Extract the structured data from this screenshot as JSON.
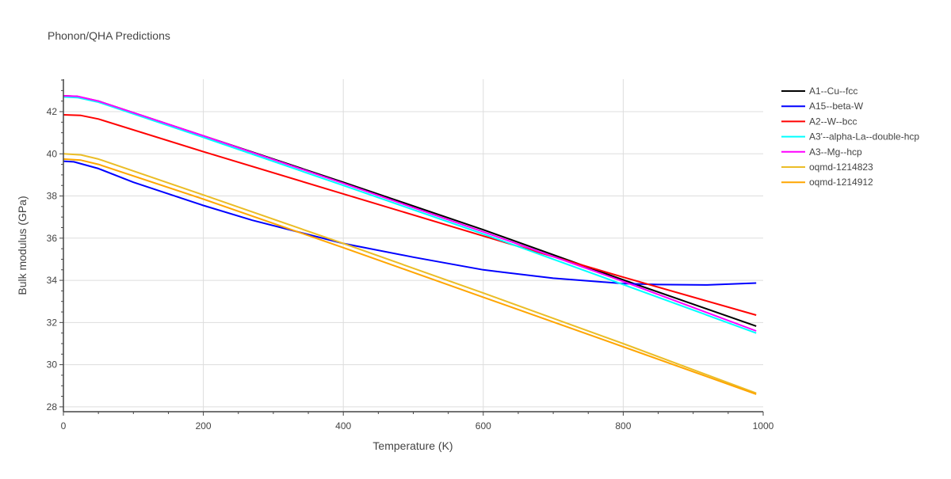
{
  "chart_data": {
    "type": "line",
    "title": "Phonon/QHA Predictions",
    "xlabel": "Temperature (K)",
    "ylabel": "Bulk modulus (GPa)",
    "xlim": [
      0,
      1000
    ],
    "ylim": [
      27.77,
      43.54
    ],
    "xticks": [
      0,
      200,
      400,
      600,
      800,
      1000
    ],
    "yticks": [
      28,
      30,
      32,
      34,
      36,
      38,
      40,
      42
    ],
    "grid": true,
    "legend_position": "top-right",
    "series": [
      {
        "name": "A1--Cu--fcc",
        "color": "#000000",
        "x": [
          0,
          20,
          50,
          200,
          400,
          600,
          800,
          990
        ],
        "y": [
          42.75,
          42.72,
          42.5,
          40.85,
          38.65,
          36.4,
          34.02,
          31.83
        ]
      },
      {
        "name": "A15--beta-W",
        "color": "#0000ff",
        "x": [
          0,
          15,
          50,
          100,
          200,
          270,
          400,
          500,
          600,
          700,
          800,
          850,
          920,
          990
        ],
        "y": [
          39.65,
          39.62,
          39.3,
          38.65,
          37.55,
          36.85,
          35.75,
          35.1,
          34.5,
          34.1,
          33.85,
          33.8,
          33.78,
          33.87
        ]
      },
      {
        "name": "A2--W--bcc",
        "color": "#ff0000",
        "x": [
          0,
          25,
          50,
          200,
          400,
          600,
          800,
          990
        ],
        "y": [
          41.85,
          41.82,
          41.65,
          40.1,
          38.1,
          36.1,
          34.15,
          32.35
        ]
      },
      {
        "name": "A3'--alpha-La--double-hcp",
        "color": "#00ffff",
        "x": [
          0,
          20,
          50,
          200,
          400,
          600,
          800,
          990
        ],
        "y": [
          42.7,
          42.67,
          42.45,
          40.78,
          38.5,
          36.2,
          33.8,
          31.5
        ]
      },
      {
        "name": "A3--Mg--hcp",
        "color": "#ff00ff",
        "x": [
          0,
          20,
          50,
          200,
          400,
          600,
          800,
          990
        ],
        "y": [
          42.75,
          42.73,
          42.5,
          40.85,
          38.6,
          36.3,
          33.95,
          31.6
        ]
      },
      {
        "name": "oqmd-1214823",
        "color": "#ebbd27",
        "x": [
          0,
          25,
          50,
          200,
          400,
          600,
          800,
          990
        ],
        "y": [
          40.0,
          39.95,
          39.75,
          38.05,
          35.75,
          33.4,
          31.0,
          28.65
        ]
      },
      {
        "name": "oqmd-1214912",
        "color": "#ffa500",
        "x": [
          0,
          25,
          50,
          200,
          400,
          600,
          800,
          990
        ],
        "y": [
          39.75,
          39.7,
          39.5,
          37.85,
          35.55,
          33.2,
          30.85,
          28.6
        ]
      }
    ]
  }
}
